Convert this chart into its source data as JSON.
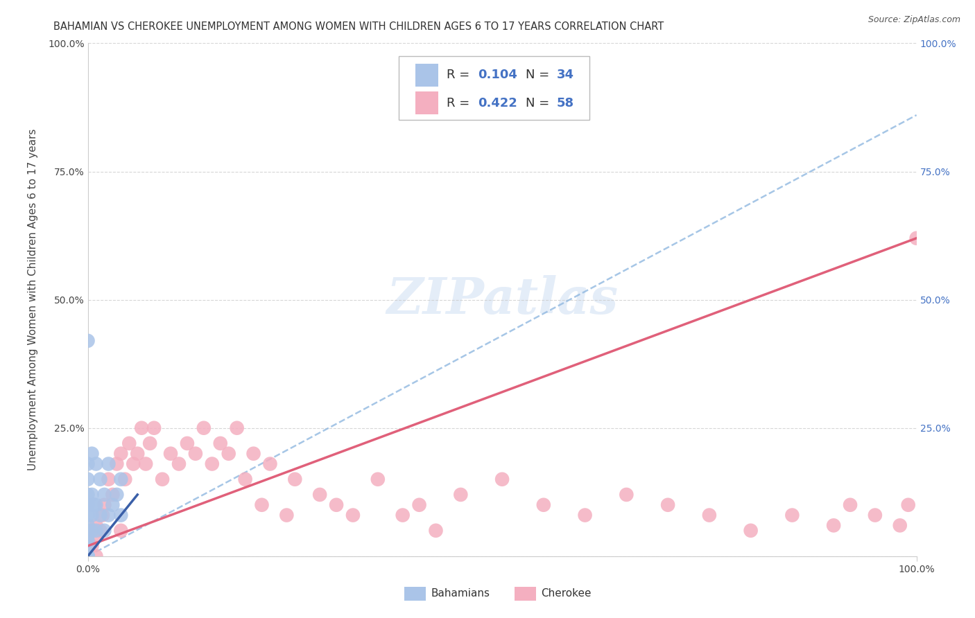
{
  "title": "BAHAMIAN VS CHEROKEE UNEMPLOYMENT AMONG WOMEN WITH CHILDREN AGES 6 TO 17 YEARS CORRELATION CHART",
  "source": "Source: ZipAtlas.com",
  "ylabel": "Unemployment Among Women with Children Ages 6 to 17 years",
  "xlim": [
    0,
    1.0
  ],
  "ylim": [
    0,
    1.0
  ],
  "watermark": "ZIPatlas",
  "legend_R1": "0.104",
  "legend_N1": "34",
  "legend_R2": "0.422",
  "legend_N2": "58",
  "bahamian_color": "#aac4e8",
  "cherokee_color": "#f4afc0",
  "bahamian_line_color": "#3a5fa8",
  "cherokee_line_color": "#e0607a",
  "dashed_line_color": "#90b8e0",
  "background_color": "#ffffff",
  "grid_color": "#cccccc",
  "cherokee_x": [
    0.005,
    0.008,
    0.01,
    0.01,
    0.015,
    0.018,
    0.02,
    0.025,
    0.03,
    0.035,
    0.04,
    0.04,
    0.045,
    0.05,
    0.055,
    0.06,
    0.065,
    0.07,
    0.075,
    0.08,
    0.09,
    0.1,
    0.11,
    0.12,
    0.13,
    0.14,
    0.15,
    0.16,
    0.17,
    0.18,
    0.19,
    0.2,
    0.21,
    0.22,
    0.24,
    0.25,
    0.28,
    0.3,
    0.32,
    0.35,
    0.38,
    0.4,
    0.42,
    0.45,
    0.5,
    0.55,
    0.6,
    0.65,
    0.7,
    0.75,
    0.8,
    0.85,
    0.9,
    0.92,
    0.95,
    0.98,
    0.99,
    1.0
  ],
  "cherokee_y": [
    0.02,
    0.04,
    0.0,
    0.06,
    0.05,
    0.08,
    0.1,
    0.15,
    0.12,
    0.18,
    0.05,
    0.2,
    0.15,
    0.22,
    0.18,
    0.2,
    0.25,
    0.18,
    0.22,
    0.25,
    0.15,
    0.2,
    0.18,
    0.22,
    0.2,
    0.25,
    0.18,
    0.22,
    0.2,
    0.25,
    0.15,
    0.2,
    0.1,
    0.18,
    0.08,
    0.15,
    0.12,
    0.1,
    0.08,
    0.15,
    0.08,
    0.1,
    0.05,
    0.12,
    0.15,
    0.1,
    0.08,
    0.12,
    0.1,
    0.08,
    0.05,
    0.08,
    0.06,
    0.1,
    0.08,
    0.06,
    0.1,
    0.62
  ],
  "bahamian_x": [
    0.0,
    0.0,
    0.0,
    0.0,
    0.0,
    0.0,
    0.0,
    0.0,
    0.0,
    0.0,
    0.0,
    0.0,
    0.0,
    0.0,
    0.0,
    0.005,
    0.005,
    0.005,
    0.005,
    0.008,
    0.01,
    0.01,
    0.01,
    0.015,
    0.015,
    0.02,
    0.02,
    0.025,
    0.025,
    0.03,
    0.035,
    0.04,
    0.04,
    0.0
  ],
  "bahamian_y": [
    0.0,
    0.0,
    0.0,
    0.0,
    0.0,
    0.02,
    0.03,
    0.04,
    0.05,
    0.06,
    0.08,
    0.1,
    0.12,
    0.15,
    0.18,
    0.05,
    0.08,
    0.12,
    0.2,
    0.1,
    0.05,
    0.1,
    0.18,
    0.08,
    0.15,
    0.05,
    0.12,
    0.08,
    0.18,
    0.1,
    0.12,
    0.08,
    0.15,
    0.42
  ],
  "pink_line_x0": 0.0,
  "pink_line_y0": 0.02,
  "pink_line_x1": 1.0,
  "pink_line_y1": 0.62,
  "blue_line_x0": 0.0,
  "blue_line_y0": 0.0,
  "blue_line_x1": 0.06,
  "blue_line_y1": 0.12,
  "dashed_line_x0": 0.0,
  "dashed_line_y0": 0.0,
  "dashed_line_x1": 1.0,
  "dashed_line_y1": 0.86,
  "title_fontsize": 10.5,
  "label_fontsize": 11,
  "tick_fontsize": 10,
  "legend_fontsize": 13
}
